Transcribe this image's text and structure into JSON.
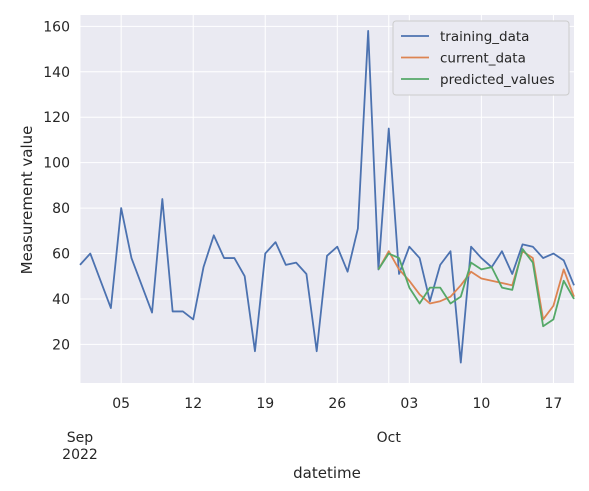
{
  "chart_data": {
    "type": "line",
    "xlabel": "datetime",
    "ylabel": "Measurement value",
    "ylim": [
      3,
      165
    ],
    "xlim": [
      "2022-09-01",
      "2022-10-19"
    ],
    "grid": true,
    "legend_position": "top-right",
    "y_ticks": [
      20,
      40,
      60,
      80,
      100,
      120,
      140,
      160
    ],
    "x_ticks": [
      {
        "date": "2022-09-05",
        "label": "05"
      },
      {
        "date": "2022-09-12",
        "label": "12"
      },
      {
        "date": "2022-09-19",
        "label": "19"
      },
      {
        "date": "2022-09-26",
        "label": "26"
      },
      {
        "date": "2022-10-03",
        "label": "03"
      },
      {
        "date": "2022-10-10",
        "label": "10"
      },
      {
        "date": "2022-10-17",
        "label": "17"
      }
    ],
    "x_major_labels": [
      {
        "date": "2022-09-01",
        "label": "Sep",
        "year": "2022"
      },
      {
        "date": "2022-10-01",
        "label": "Oct"
      }
    ],
    "series": [
      {
        "name": "training_data",
        "color": "#4c72b0",
        "points": [
          [
            "2022-09-01",
            55
          ],
          [
            "2022-09-02",
            60
          ],
          [
            "2022-09-03",
            48
          ],
          [
            "2022-09-04",
            36
          ],
          [
            "2022-09-05",
            80
          ],
          [
            "2022-09-06",
            58
          ],
          [
            "2022-09-07",
            46
          ],
          [
            "2022-09-08",
            34
          ],
          [
            "2022-09-09",
            84
          ],
          [
            "2022-09-10",
            34.5
          ],
          [
            "2022-09-11",
            34.5
          ],
          [
            "2022-09-12",
            31
          ],
          [
            "2022-09-13",
            54
          ],
          [
            "2022-09-14",
            68
          ],
          [
            "2022-09-15",
            58
          ],
          [
            "2022-09-16",
            58
          ],
          [
            "2022-09-17",
            50
          ],
          [
            "2022-09-18",
            17
          ],
          [
            "2022-09-19",
            60
          ],
          [
            "2022-09-20",
            65
          ],
          [
            "2022-09-21",
            55
          ],
          [
            "2022-09-22",
            56
          ],
          [
            "2022-09-23",
            51
          ],
          [
            "2022-09-24",
            17
          ],
          [
            "2022-09-25",
            59
          ],
          [
            "2022-09-26",
            63
          ],
          [
            "2022-09-27",
            52
          ],
          [
            "2022-09-28",
            71
          ],
          [
            "2022-09-29",
            158
          ],
          [
            "2022-09-30",
            53
          ],
          [
            "2022-10-01",
            115
          ],
          [
            "2022-10-02",
            51
          ],
          [
            "2022-10-03",
            63
          ],
          [
            "2022-10-04",
            58
          ],
          [
            "2022-10-05",
            39
          ],
          [
            "2022-10-06",
            55
          ],
          [
            "2022-10-07",
            61
          ],
          [
            "2022-10-08",
            12
          ],
          [
            "2022-10-09",
            63
          ],
          [
            "2022-10-10",
            58
          ],
          [
            "2022-10-11",
            54
          ],
          [
            "2022-10-12",
            61
          ],
          [
            "2022-10-13",
            51
          ],
          [
            "2022-10-14",
            64
          ],
          [
            "2022-10-15",
            63
          ],
          [
            "2022-10-16",
            58
          ],
          [
            "2022-10-17",
            60
          ],
          [
            "2022-10-18",
            57
          ],
          [
            "2022-10-19",
            46
          ]
        ]
      },
      {
        "name": "current_data",
        "color": "#dd8452",
        "points": [
          [
            "2022-09-30",
            53
          ],
          [
            "2022-10-01",
            61
          ],
          [
            "2022-10-02",
            53
          ],
          [
            "2022-10-03",
            48
          ],
          [
            "2022-10-04",
            42
          ],
          [
            "2022-10-05",
            38
          ],
          [
            "2022-10-06",
            39
          ],
          [
            "2022-10-07",
            41
          ],
          [
            "2022-10-08",
            46
          ],
          [
            "2022-10-09",
            52
          ],
          [
            "2022-10-10",
            49
          ],
          [
            "2022-10-11",
            48
          ],
          [
            "2022-10-12",
            47
          ],
          [
            "2022-10-13",
            46
          ],
          [
            "2022-10-14",
            61
          ],
          [
            "2022-10-15",
            58
          ],
          [
            "2022-10-16",
            31
          ],
          [
            "2022-10-17",
            37
          ],
          [
            "2022-10-18",
            53
          ],
          [
            "2022-10-19",
            41
          ]
        ]
      },
      {
        "name": "predicted_values",
        "color": "#55a868",
        "points": [
          [
            "2022-09-30",
            53
          ],
          [
            "2022-10-01",
            60
          ],
          [
            "2022-10-02",
            58
          ],
          [
            "2022-10-03",
            45
          ],
          [
            "2022-10-04",
            38
          ],
          [
            "2022-10-05",
            45
          ],
          [
            "2022-10-06",
            45
          ],
          [
            "2022-10-07",
            38
          ],
          [
            "2022-10-08",
            41
          ],
          [
            "2022-10-09",
            56
          ],
          [
            "2022-10-10",
            53
          ],
          [
            "2022-10-11",
            54
          ],
          [
            "2022-10-12",
            45
          ],
          [
            "2022-10-13",
            44
          ],
          [
            "2022-10-14",
            62
          ],
          [
            "2022-10-15",
            56
          ],
          [
            "2022-10-16",
            28
          ],
          [
            "2022-10-17",
            31
          ],
          [
            "2022-10-18",
            48
          ],
          [
            "2022-10-19",
            40
          ]
        ]
      }
    ]
  }
}
